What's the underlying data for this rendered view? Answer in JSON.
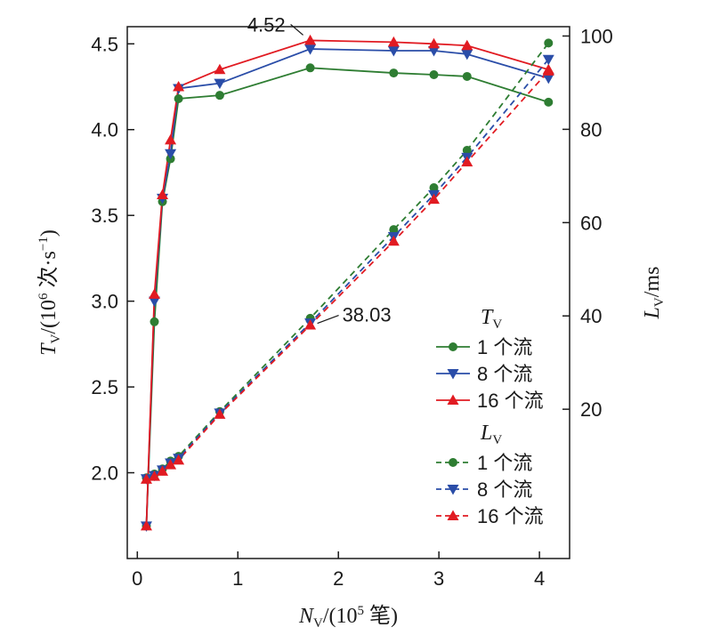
{
  "chart_data": {
    "type": "line",
    "x": {
      "label_var": "N",
      "label_sub": "V",
      "label_rest": "/(10",
      "label_sup": "5",
      "label_unit": " 笔)",
      "range": [
        -0.1,
        4.3
      ],
      "ticks": [
        0,
        1,
        2,
        3,
        4
      ]
    },
    "y_left": {
      "label_var": "T",
      "label_sub": "V",
      "label_rest": "/(10",
      "label_sup": "6",
      "label_unit": " 次·s",
      "label_sup2": "−1",
      "label_end": ")",
      "range": [
        1.5,
        4.6
      ],
      "ticks": [
        2.0,
        2.5,
        3.0,
        3.5,
        4.0,
        4.5
      ],
      "tick_labels": [
        "2.0",
        "2.5",
        "3.0",
        "3.5",
        "4.0",
        "4.5"
      ]
    },
    "y_right": {
      "label_var": "L",
      "label_sub": "V",
      "label_rest": "/ms",
      "range": [
        -12,
        102
      ],
      "ticks": [
        20,
        40,
        60,
        80,
        100
      ],
      "tick_labels": [
        "20",
        "40",
        "60",
        "80",
        "100"
      ]
    },
    "series": [
      {
        "group": "T",
        "name": "1 个流",
        "color": "#2e7d32",
        "marker": "circle",
        "dash": false,
        "axis": "left",
        "points": [
          [
            0.09,
            1.69
          ],
          [
            0.17,
            2.88
          ],
          [
            0.25,
            3.58
          ],
          [
            0.33,
            3.83
          ],
          [
            0.41,
            4.18
          ],
          [
            0.82,
            4.2
          ],
          [
            1.72,
            4.36
          ],
          [
            2.55,
            4.33
          ],
          [
            2.95,
            4.32
          ],
          [
            3.28,
            4.31
          ],
          [
            4.09,
            4.16
          ]
        ]
      },
      {
        "group": "T",
        "name": "8 个流",
        "color": "#2a4da8",
        "marker": "triangle-down",
        "dash": false,
        "axis": "left",
        "points": [
          [
            0.09,
            1.69
          ],
          [
            0.17,
            3.0
          ],
          [
            0.25,
            3.6
          ],
          [
            0.33,
            3.86
          ],
          [
            0.41,
            4.24
          ],
          [
            0.82,
            4.27
          ],
          [
            1.72,
            4.47
          ],
          [
            2.55,
            4.46
          ],
          [
            2.95,
            4.46
          ],
          [
            3.28,
            4.44
          ],
          [
            4.09,
            4.3
          ]
        ]
      },
      {
        "group": "T",
        "name": "16 个流",
        "color": "#e11b22",
        "marker": "triangle-up",
        "dash": false,
        "axis": "left",
        "points": [
          [
            0.09,
            1.69
          ],
          [
            0.17,
            3.04
          ],
          [
            0.25,
            3.62
          ],
          [
            0.33,
            3.94
          ],
          [
            0.41,
            4.25
          ],
          [
            0.82,
            4.35
          ],
          [
            1.72,
            4.52
          ],
          [
            2.55,
            4.51
          ],
          [
            2.95,
            4.5
          ],
          [
            3.28,
            4.49
          ],
          [
            4.09,
            4.35
          ]
        ]
      },
      {
        "group": "L",
        "name": "1 个流",
        "color": "#2e7d32",
        "marker": "circle",
        "dash": true,
        "axis": "right",
        "points": [
          [
            0.09,
            5.3
          ],
          [
            0.17,
            6.1
          ],
          [
            0.25,
            7.2
          ],
          [
            0.33,
            8.9
          ],
          [
            0.41,
            9.9
          ],
          [
            0.82,
            19.5
          ],
          [
            1.72,
            39.5
          ],
          [
            2.55,
            58.5
          ],
          [
            2.95,
            67.5
          ],
          [
            3.28,
            75.5
          ],
          [
            4.09,
            98.5
          ]
        ]
      },
      {
        "group": "L",
        "name": "8 个流",
        "color": "#2a4da8",
        "marker": "triangle-down",
        "dash": true,
        "axis": "right",
        "points": [
          [
            0.09,
            5.1
          ],
          [
            0.17,
            5.8
          ],
          [
            0.25,
            7.0
          ],
          [
            0.33,
            8.5
          ],
          [
            0.41,
            9.5
          ],
          [
            0.82,
            19.2
          ],
          [
            1.72,
            38.5
          ],
          [
            2.55,
            57.0
          ],
          [
            2.95,
            66.0
          ],
          [
            3.28,
            74.0
          ],
          [
            4.09,
            95.0
          ]
        ]
      },
      {
        "group": "L",
        "name": "16 个流",
        "color": "#e11b22",
        "marker": "triangle-up",
        "dash": true,
        "axis": "right",
        "points": [
          [
            0.09,
            5.0
          ],
          [
            0.17,
            5.6
          ],
          [
            0.25,
            6.7
          ],
          [
            0.33,
            8.1
          ],
          [
            0.41,
            9.1
          ],
          [
            0.82,
            18.9
          ],
          [
            1.72,
            38.03
          ],
          [
            2.55,
            56.0
          ],
          [
            2.95,
            65.0
          ],
          [
            3.28,
            73.0
          ],
          [
            4.09,
            92.5
          ]
        ]
      }
    ],
    "legend": {
      "placement": "bottom-right",
      "groups": [
        {
          "title_var": "T",
          "title_sub": "V",
          "entries": [
            "1 个流",
            "8 个流",
            "16 个流"
          ]
        },
        {
          "title_var": "L",
          "title_sub": "V",
          "entries": [
            "1 个流",
            "8 个流",
            "16 个流"
          ]
        }
      ]
    },
    "annotations": [
      {
        "text": "4.52",
        "target": [
          1.72,
          4.52
        ],
        "axis": "left"
      },
      {
        "text": "38.03",
        "target": [
          1.72,
          38.03
        ],
        "axis": "right"
      }
    ]
  }
}
